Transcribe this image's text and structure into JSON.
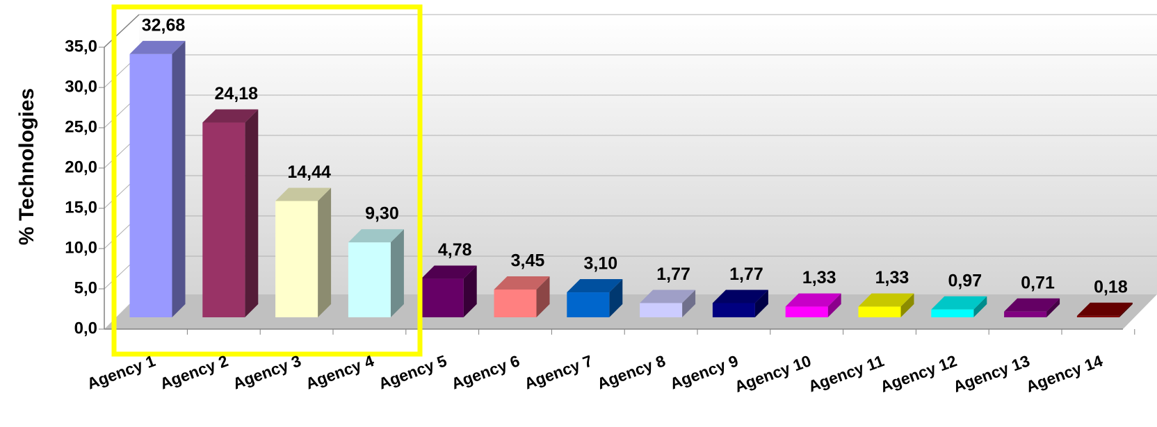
{
  "chart_data": {
    "type": "bar3d",
    "y_axis_label": "% Technologies",
    "categories": [
      "Agency 1",
      "Agency 2",
      "Agency 3",
      "Agency 4",
      "Agency 5",
      "Agency 6",
      "Agency 7",
      "Agency 8",
      "Agency 9",
      "Agency 10",
      "Agency 11",
      "Agency 12",
      "Agency 13",
      "Agency 14"
    ],
    "values": [
      32.68,
      24.18,
      14.44,
      9.3,
      4.78,
      3.45,
      3.1,
      1.77,
      1.77,
      1.33,
      1.33,
      0.97,
      0.71,
      0.18
    ],
    "value_labels": [
      "32,68",
      "24,18",
      "14,44",
      "9,30",
      "4,78",
      "3,45",
      "3,10",
      "1,77",
      "1,77",
      "1,33",
      "1,33",
      "0,97",
      "0,71",
      "0,18"
    ],
    "colors": [
      "#9999ff",
      "#993366",
      "#ffffcc",
      "#ccffff",
      "#660066",
      "#ff8080",
      "#0066cc",
      "#ccccff",
      "#000080",
      "#ff00ff",
      "#ffff00",
      "#00ffff",
      "#800080",
      "#800000"
    ],
    "ylim": [
      0,
      35
    ],
    "yticks": [
      {
        "value": 0,
        "label": "0,0"
      },
      {
        "value": 5,
        "label": "5,0"
      },
      {
        "value": 10,
        "label": "10,0"
      },
      {
        "value": 15,
        "label": "15,0"
      },
      {
        "value": 20,
        "label": "20,0"
      },
      {
        "value": 25,
        "label": "25,0"
      },
      {
        "value": 30,
        "label": "30,0"
      },
      {
        "value": 35,
        "label": "35,0"
      }
    ],
    "grid": true
  }
}
